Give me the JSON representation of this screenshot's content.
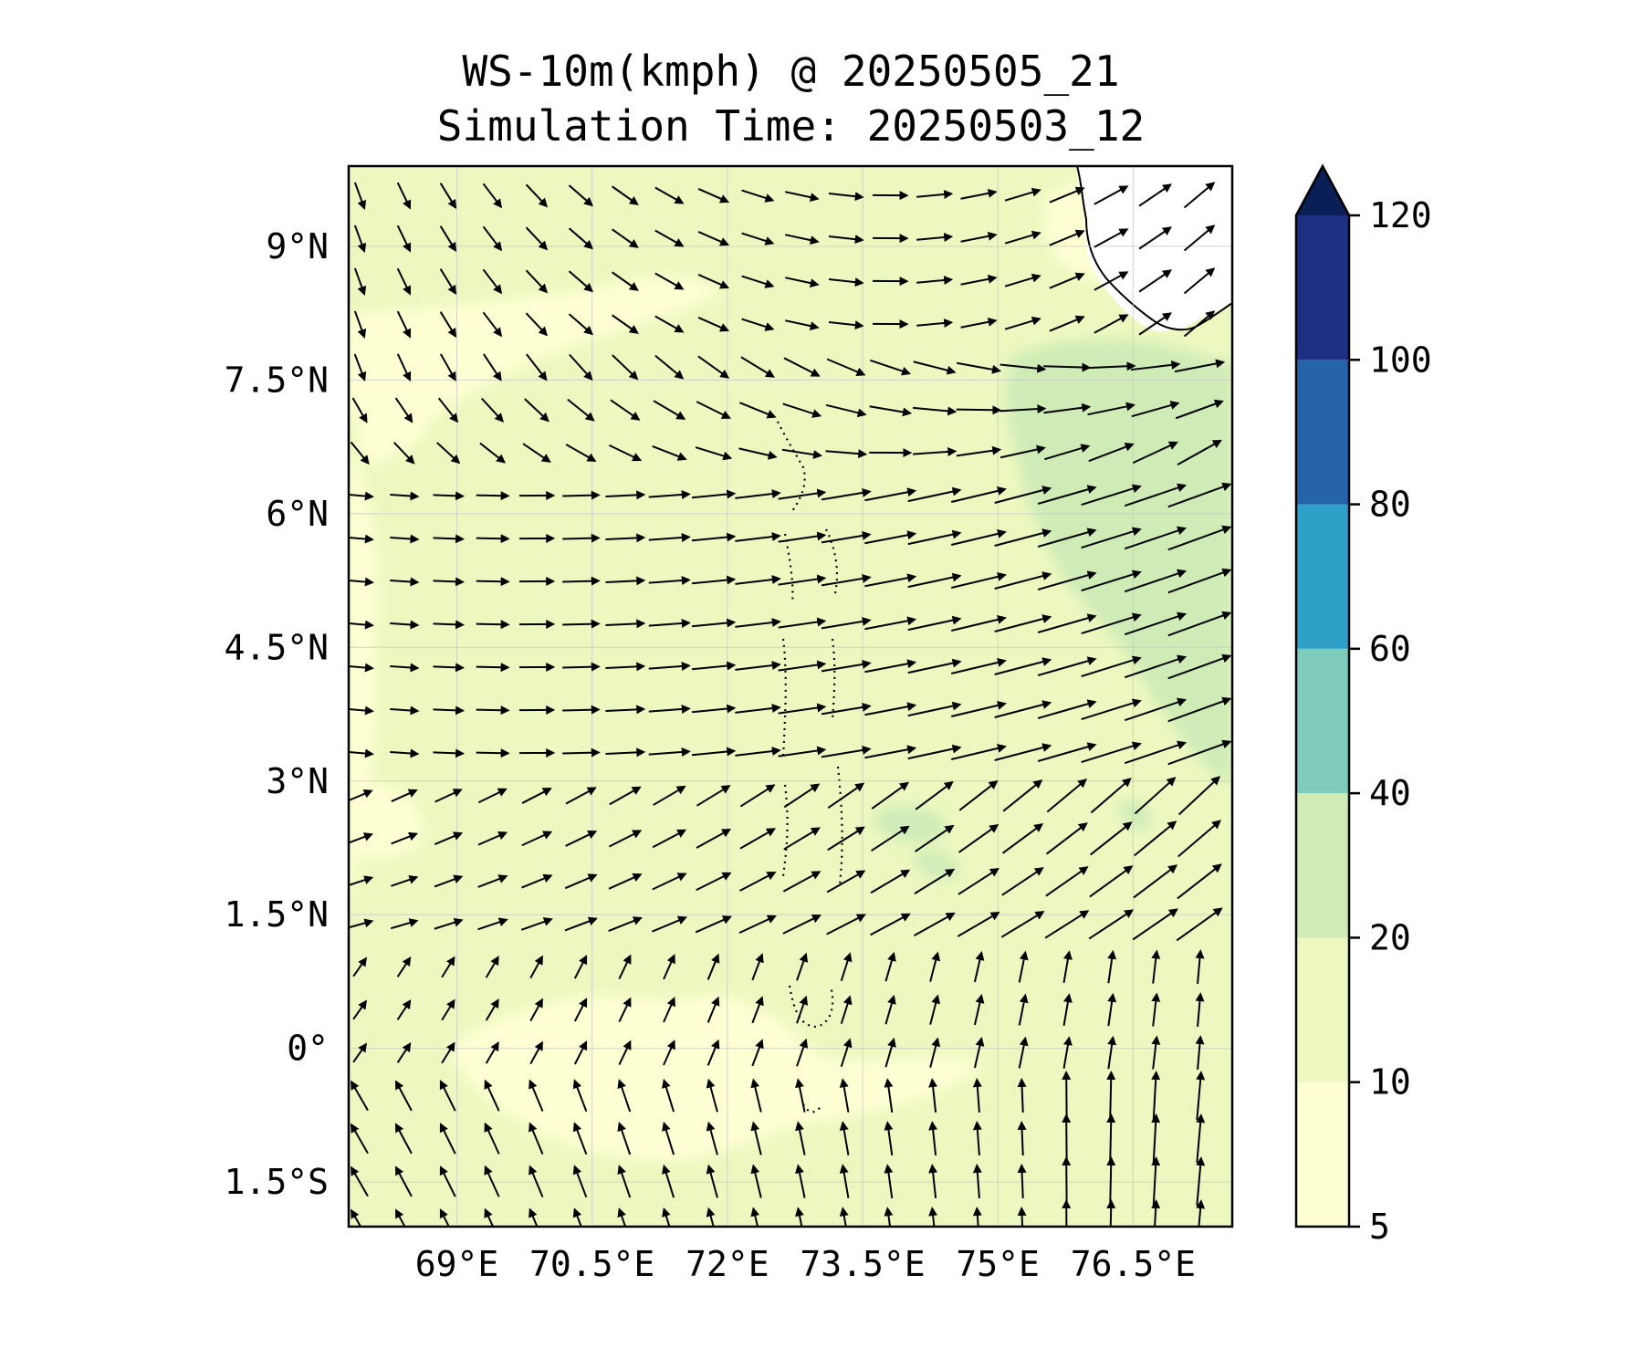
{
  "title": {
    "line1": "WS-10m(kmph) @ 20250505_21",
    "line2": "Simulation Time: 20250503_12"
  },
  "map": {
    "lon_range": [
      67.8,
      77.6
    ],
    "lat_range": [
      -2.0,
      9.9
    ],
    "lat_ticks": [
      {
        "value": 9.0,
        "label": "9°N"
      },
      {
        "value": 7.5,
        "label": "7.5°N"
      },
      {
        "value": 6.0,
        "label": "6°N"
      },
      {
        "value": 4.5,
        "label": "4.5°N"
      },
      {
        "value": 3.0,
        "label": "3°N"
      },
      {
        "value": 1.5,
        "label": "1.5°N"
      },
      {
        "value": 0.0,
        "label": "0°"
      },
      {
        "value": -1.5,
        "label": "1.5°S"
      }
    ],
    "lon_ticks": [
      {
        "value": 69.0,
        "label": "69°E"
      },
      {
        "value": 70.5,
        "label": "70.5°E"
      },
      {
        "value": 72.0,
        "label": "72°E"
      },
      {
        "value": 73.5,
        "label": "73.5°E"
      },
      {
        "value": 75.0,
        "label": "75°E"
      },
      {
        "value": 76.5,
        "label": "76.5°E"
      }
    ],
    "land_color": "#ffffff",
    "ocean_base_color": "#edf8c0"
  },
  "colorbar": {
    "levels": [
      "5",
      "10",
      "20",
      "40",
      "60",
      "80",
      "100",
      "120"
    ],
    "colors": [
      "#ffffd4",
      "#edf8c0",
      "#cfecb7",
      "#7fcbbc",
      "#2fa1c8",
      "#2463aa",
      "#1d2e83"
    ],
    "extend_color": "#0a1f55",
    "extend": "max"
  }
}
